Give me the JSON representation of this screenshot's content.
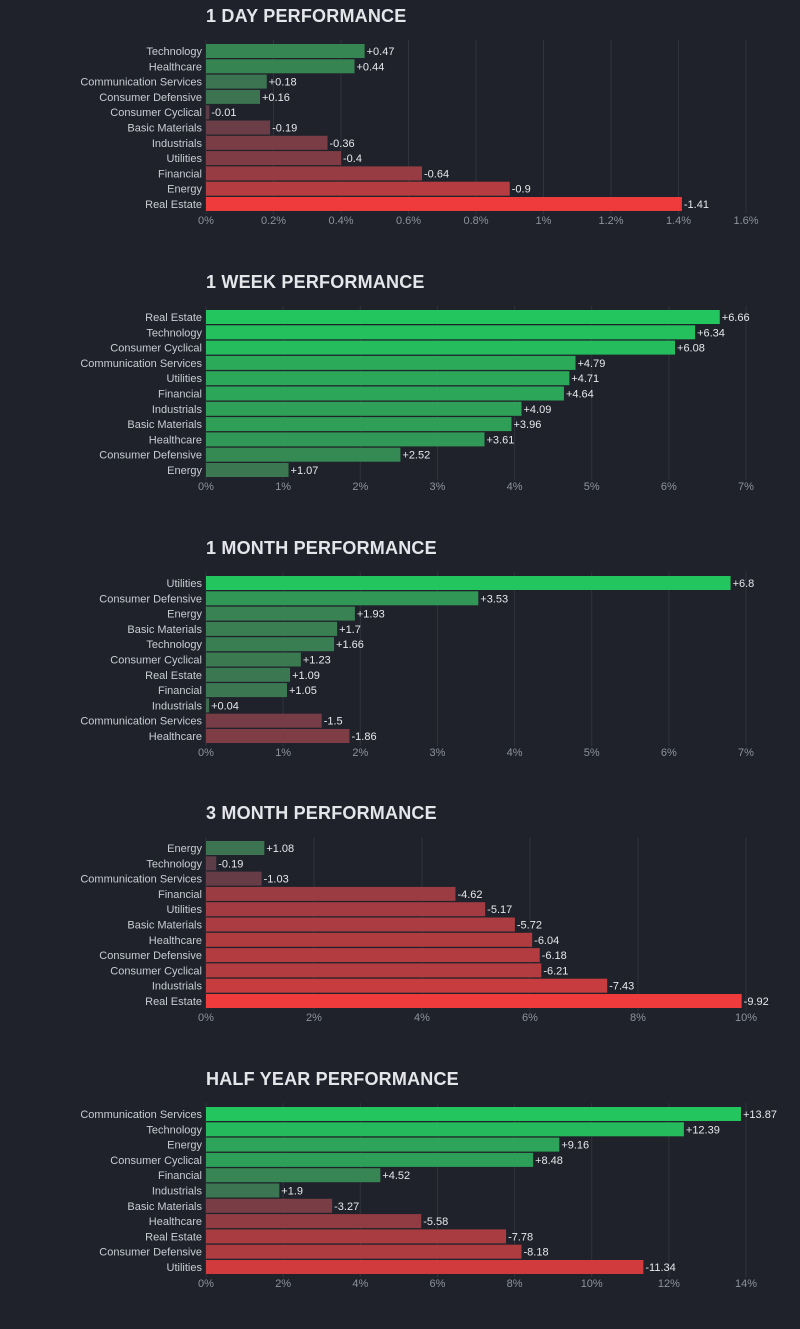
{
  "chart_data": [
    {
      "type": "bar",
      "orientation": "horizontal",
      "title": "1 DAY PERFORMANCE",
      "categories": [
        "Technology",
        "Healthcare",
        "Communication Services",
        "Consumer Defensive",
        "Consumer Cyclical",
        "Basic Materials",
        "Industrials",
        "Utilities",
        "Financial",
        "Energy",
        "Real Estate"
      ],
      "values": [
        0.47,
        0.44,
        0.18,
        0.16,
        -0.01,
        -0.19,
        -0.36,
        -0.4,
        -0.64,
        -0.9,
        -1.41
      ],
      "value_labels": [
        "+0.47",
        "+0.44",
        "+0.18",
        "+0.16",
        "-0.01",
        "-0.19",
        "-0.36",
        "-0.4",
        "-0.64",
        "-0.9",
        "-1.41"
      ],
      "xlim": [
        0,
        1.6
      ],
      "xticks": [
        "0%",
        "0.2%",
        "0.4%",
        "0.6%",
        "0.8%",
        "1%",
        "1.2%",
        "1.4%",
        "1.6%"
      ],
      "colors": {
        "positive_low": "#3f6b4f",
        "positive_high": "#22c55e",
        "negative_low": "#5a3d48",
        "negative_high": "#ef3b3b"
      },
      "grid": true
    },
    {
      "type": "bar",
      "orientation": "horizontal",
      "title": "1 WEEK PERFORMANCE",
      "categories": [
        "Real Estate",
        "Technology",
        "Consumer Cyclical",
        "Communication Services",
        "Utilities",
        "Financial",
        "Industrials",
        "Basic Materials",
        "Healthcare",
        "Consumer Defensive",
        "Energy"
      ],
      "values": [
        6.66,
        6.34,
        6.08,
        4.79,
        4.71,
        4.64,
        4.09,
        3.96,
        3.61,
        2.52,
        1.07
      ],
      "value_labels": [
        "+6.66",
        "+6.34",
        "+6.08",
        "+4.79",
        "+4.71",
        "+4.64",
        "+4.09",
        "+3.96",
        "+3.61",
        "+2.52",
        "+1.07"
      ],
      "xlim": [
        0,
        7
      ],
      "xticks": [
        "0%",
        "1%",
        "2%",
        "3%",
        "4%",
        "5%",
        "6%",
        "7%"
      ],
      "colors": {
        "positive_low": "#3f6b4f",
        "positive_high": "#22c55e",
        "negative_low": "#5a3d48",
        "negative_high": "#ef3b3b"
      },
      "grid": true
    },
    {
      "type": "bar",
      "orientation": "horizontal",
      "title": "1 MONTH PERFORMANCE",
      "categories": [
        "Utilities",
        "Consumer Defensive",
        "Energy",
        "Basic Materials",
        "Technology",
        "Consumer Cyclical",
        "Real Estate",
        "Financial",
        "Industrials",
        "Communication Services",
        "Healthcare"
      ],
      "values": [
        6.8,
        3.53,
        1.93,
        1.7,
        1.66,
        1.23,
        1.09,
        1.05,
        0.04,
        -1.5,
        -1.86
      ],
      "value_labels": [
        "+6.8",
        "+3.53",
        "+1.93",
        "+1.7",
        "+1.66",
        "+1.23",
        "+1.09",
        "+1.05",
        "+0.04",
        "-1.5",
        "-1.86"
      ],
      "xlim": [
        0,
        7
      ],
      "xticks": [
        "0%",
        "1%",
        "2%",
        "3%",
        "4%",
        "5%",
        "6%",
        "7%"
      ],
      "colors": {
        "positive_low": "#3f6b4f",
        "positive_high": "#22c55e",
        "negative_low": "#5a3d48",
        "negative_high": "#ef3b3b"
      },
      "grid": true
    },
    {
      "type": "bar",
      "orientation": "horizontal",
      "title": "3 MONTH PERFORMANCE",
      "categories": [
        "Energy",
        "Technology",
        "Communication Services",
        "Financial",
        "Utilities",
        "Basic Materials",
        "Healthcare",
        "Consumer Defensive",
        "Consumer Cyclical",
        "Industrials",
        "Real Estate"
      ],
      "values": [
        1.08,
        -0.19,
        -1.03,
        -4.62,
        -5.17,
        -5.72,
        -6.04,
        -6.18,
        -6.21,
        -7.43,
        -9.92
      ],
      "value_labels": [
        "+1.08",
        "-0.19",
        "-1.03",
        "-4.62",
        "-5.17",
        "-5.72",
        "-6.04",
        "-6.18",
        "-6.21",
        "-7.43",
        "-9.92"
      ],
      "xlim": [
        0,
        10
      ],
      "xticks": [
        "0%",
        "2%",
        "4%",
        "6%",
        "8%",
        "10%"
      ],
      "colors": {
        "positive_low": "#3f6b4f",
        "positive_high": "#22c55e",
        "negative_low": "#5a3d48",
        "negative_high": "#ef3b3b"
      },
      "grid": true
    },
    {
      "type": "bar",
      "orientation": "horizontal",
      "title": "HALF YEAR PERFORMANCE",
      "categories": [
        "Communication Services",
        "Technology",
        "Energy",
        "Consumer Cyclical",
        "Financial",
        "Industrials",
        "Basic Materials",
        "Healthcare",
        "Real Estate",
        "Consumer Defensive",
        "Utilities"
      ],
      "values": [
        13.87,
        12.39,
        9.16,
        8.48,
        4.52,
        1.9,
        -3.27,
        -5.58,
        -7.78,
        -8.18,
        -11.34
      ],
      "value_labels": [
        "+13.87",
        "+12.39",
        "+9.16",
        "+8.48",
        "+4.52",
        "+1.9",
        "-3.27",
        "-5.58",
        "-7.78",
        "-8.18",
        "-11.34"
      ],
      "xlim": [
        0,
        14
      ],
      "xticks": [
        "0%",
        "2%",
        "4%",
        "6%",
        "8%",
        "10%",
        "12%",
        "14%"
      ],
      "colors": {
        "positive_low": "#3f6b4f",
        "positive_high": "#22c55e",
        "negative_low": "#5a3d48",
        "negative_high": "#ef3b3b"
      },
      "grid": true
    }
  ]
}
